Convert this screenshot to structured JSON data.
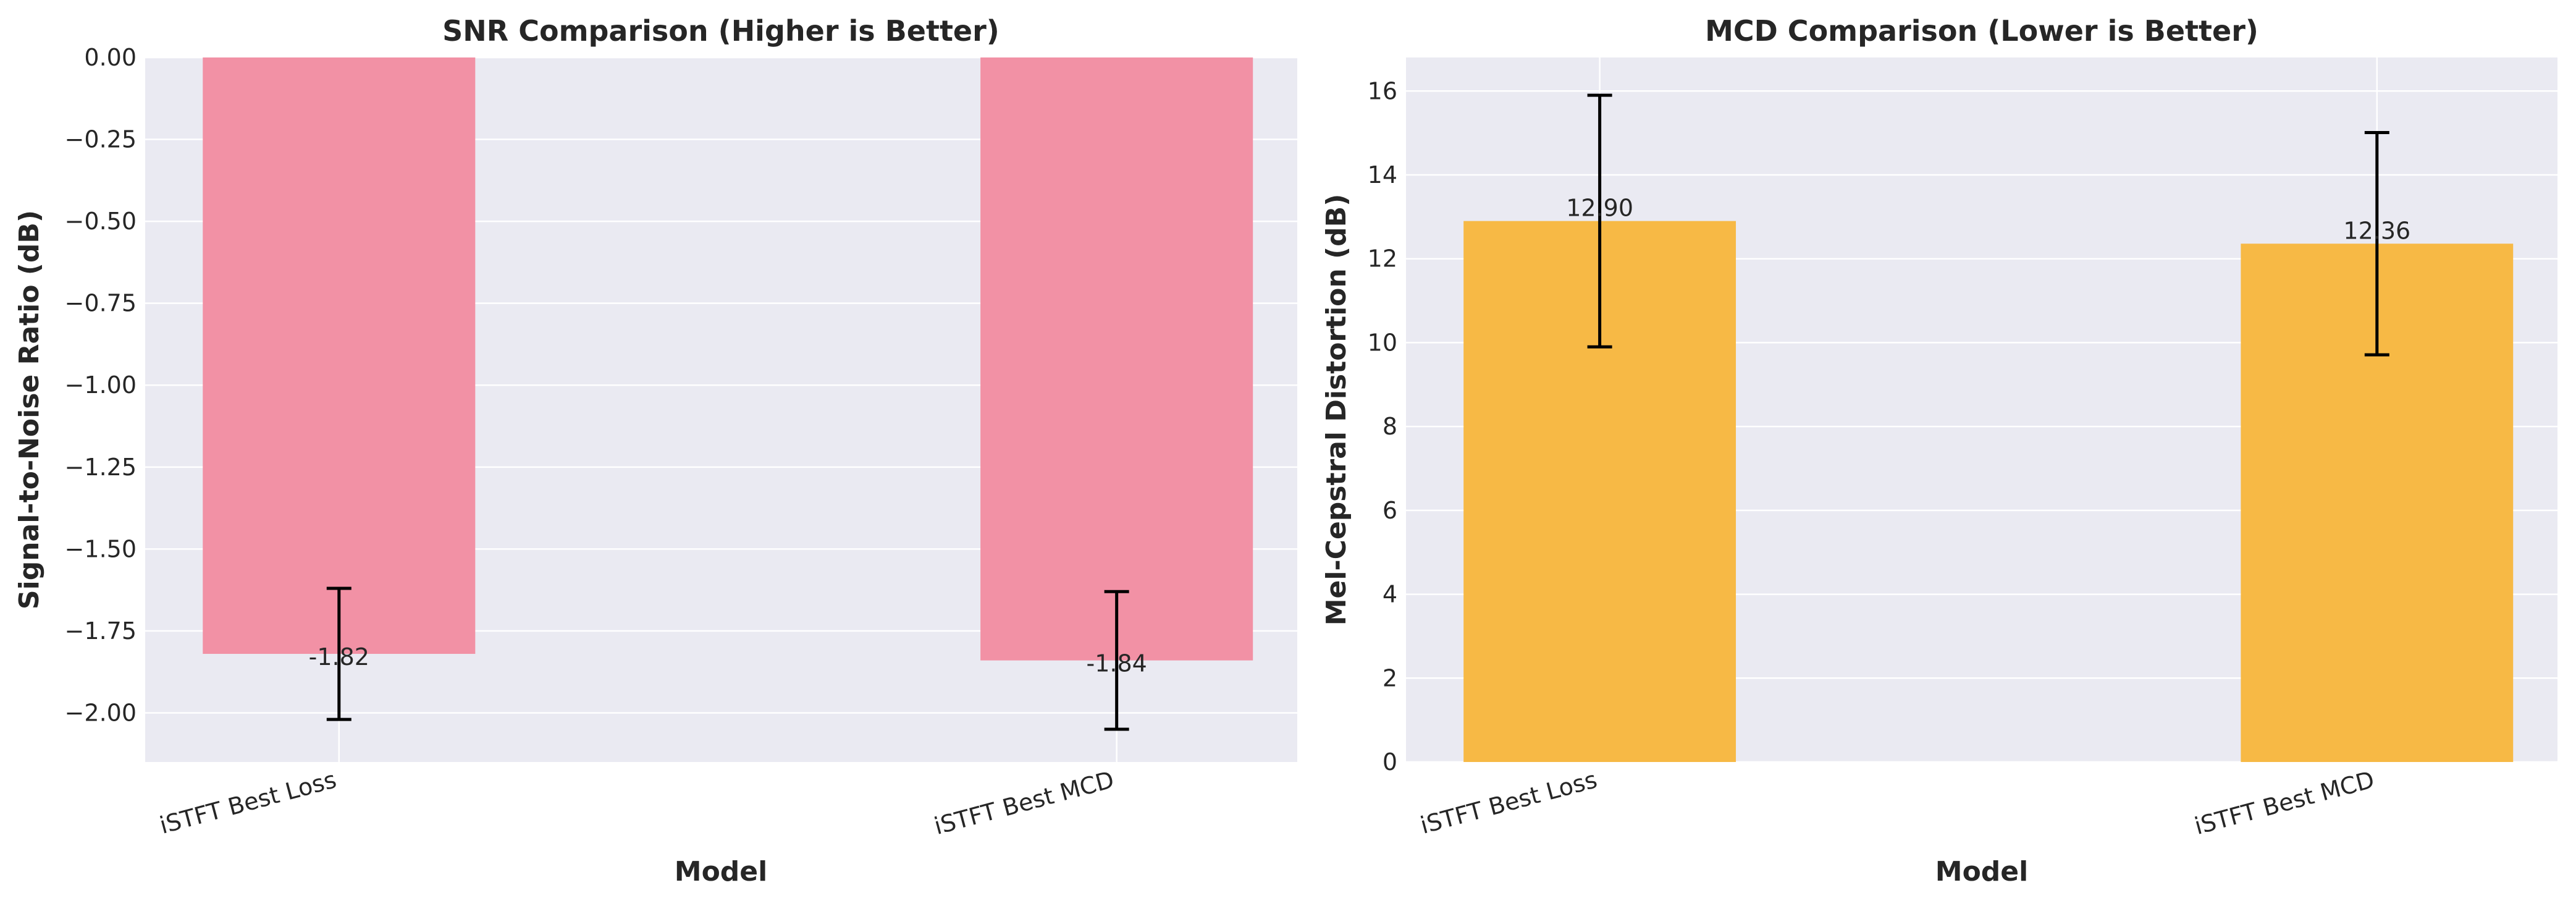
{
  "chart_data": [
    {
      "type": "bar",
      "title": "SNR Comparison (Higher is Better)",
      "xlabel": "Model",
      "ylabel": "Signal-to-Noise Ratio (dB)",
      "categories": [
        "iSTFT Best Loss",
        "iSTFT Best MCD"
      ],
      "values": [
        -1.82,
        -1.84
      ],
      "errors": [
        0.2,
        0.21
      ],
      "data_labels": [
        "-1.82",
        "-1.84"
      ],
      "ylim": [
        -2.15,
        0.0
      ],
      "yticks": [
        0.0,
        -0.25,
        -0.5,
        -0.75,
        -1.0,
        -1.25,
        -1.5,
        -1.75,
        -2.0
      ],
      "ytick_labels": [
        "0.00",
        "−0.25",
        "−0.50",
        "−0.75",
        "−1.00",
        "−1.25",
        "−1.50",
        "−1.75",
        "−2.00"
      ],
      "bar_color": "#f291a5",
      "grid": true,
      "legend": "none"
    },
    {
      "type": "bar",
      "title": "MCD Comparison (Lower is Better)",
      "xlabel": "Model",
      "ylabel": "Mel-Cepstral Distortion (dB)",
      "categories": [
        "iSTFT Best Loss",
        "iSTFT Best MCD"
      ],
      "values": [
        12.9,
        12.36
      ],
      "errors": [
        3.0,
        2.65
      ],
      "data_labels": [
        "12.90",
        "12.36"
      ],
      "ylim": [
        0,
        16.8
      ],
      "yticks": [
        0,
        2,
        4,
        6,
        8,
        10,
        12,
        14,
        16
      ],
      "ytick_labels": [
        "0",
        "2",
        "4",
        "6",
        "8",
        "10",
        "12",
        "14",
        "16"
      ],
      "bar_color": "#f7b945",
      "grid": true,
      "legend": "none"
    }
  ]
}
